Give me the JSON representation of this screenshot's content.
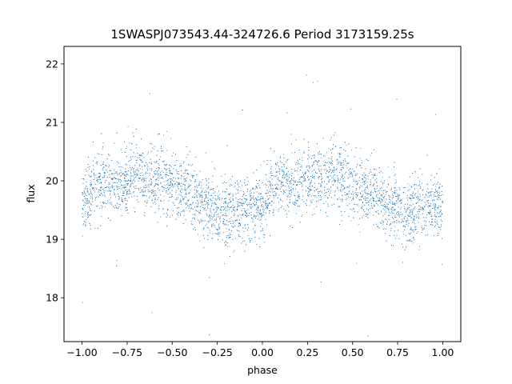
{
  "chart_data": {
    "type": "scatter",
    "title": "1SWASPJ073543.44-324726.6 Period 3173159.25s",
    "xlabel": "phase",
    "ylabel": "flux",
    "xlim": [
      -1.1,
      1.1
    ],
    "ylim": [
      17.25,
      22.3
    ],
    "xticks": [
      -1.0,
      -0.75,
      -0.5,
      -0.25,
      0.0,
      0.25,
      0.5,
      0.75,
      1.0
    ],
    "xtick_labels": [
      "−1.00",
      "−0.75",
      "−0.50",
      "−0.25",
      "0.00",
      "0.25",
      "0.50",
      "0.75",
      "1.00"
    ],
    "yticks": [
      18,
      19,
      20,
      21,
      22
    ],
    "ytick_labels": [
      "18",
      "19",
      "20",
      "21",
      "22"
    ],
    "grid": false,
    "marker_color": "#1f77b4",
    "series": [
      {
        "phase_profile": {
          "phase": [
            0.0,
            0.05,
            0.1,
            0.15,
            0.2,
            0.25,
            0.3,
            0.35,
            0.4,
            0.45,
            0.5,
            0.55,
            0.6,
            0.65,
            0.7,
            0.75,
            0.8,
            0.85,
            0.9,
            0.95,
            1.0
          ],
          "flux": [
            19.6,
            19.8,
            19.95,
            19.95,
            19.95,
            20.05,
            20.1,
            20.05,
            20.1,
            20.05,
            19.95,
            19.85,
            19.8,
            19.7,
            19.55,
            19.5,
            19.45,
            19.45,
            19.5,
            19.55,
            19.6
          ]
        },
        "phase_range": [
          -1.0,
          1.0
        ],
        "point_count": 6000,
        "scatter_sigma": 0.28
      }
    ]
  }
}
